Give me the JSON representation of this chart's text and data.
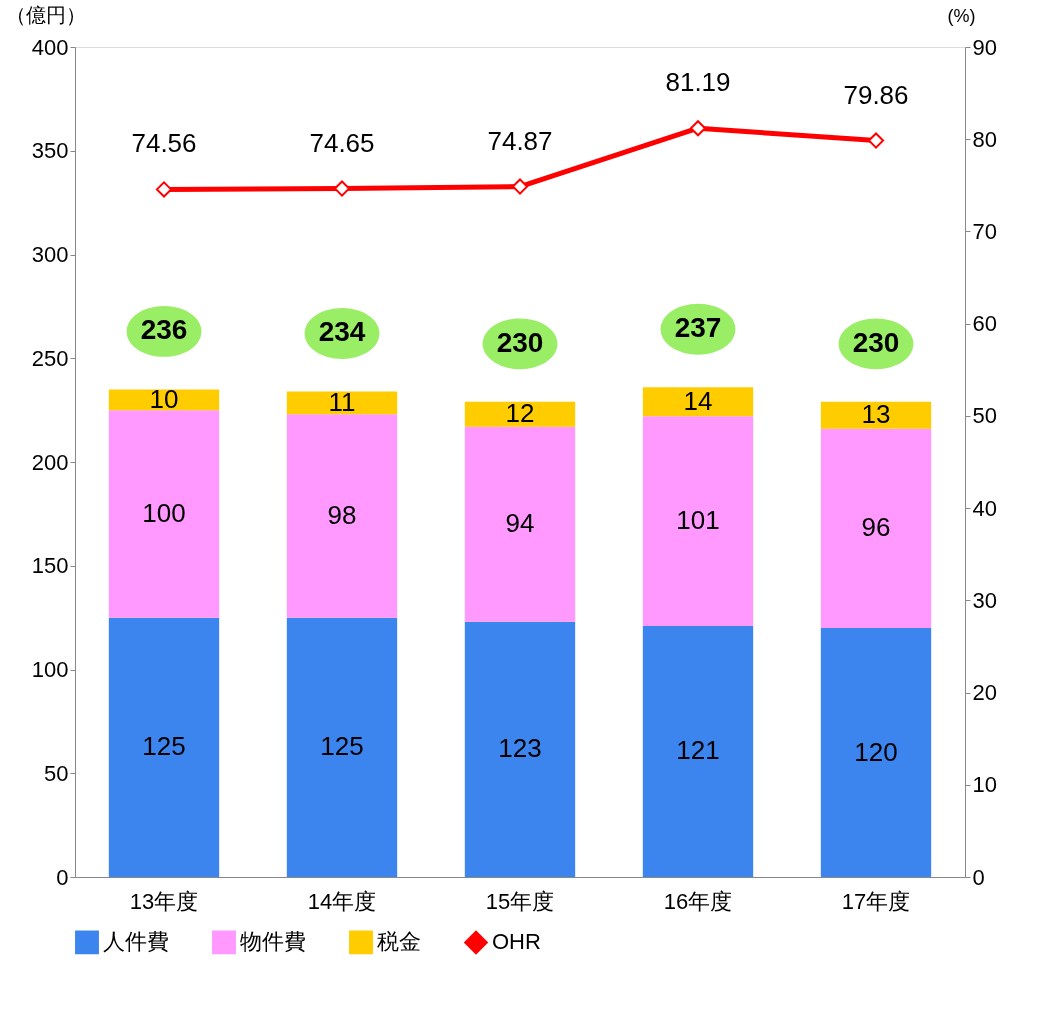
{
  "chart_data": {
    "type": "bar",
    "stacked": true,
    "categories": [
      "13年度",
      "14年度",
      "15年度",
      "16年度",
      "17年度"
    ],
    "series": [
      {
        "name": "人件費",
        "color": "#3d85ee",
        "values": [
          125,
          125,
          123,
          121,
          120
        ]
      },
      {
        "name": "物件費",
        "color": "#ff99ff",
        "values": [
          100,
          98,
          94,
          101,
          96
        ]
      },
      {
        "name": "税金",
        "color": "#ffcc00",
        "values": [
          10,
          11,
          12,
          14,
          13
        ]
      },
      {
        "name": "OHR",
        "type": "line",
        "axis": "y2",
        "color": "#ff0000",
        "marker": "diamond",
        "values": [
          74.56,
          74.65,
          74.87,
          81.19,
          79.86
        ]
      }
    ],
    "totals": [
      "236",
      "234",
      "230",
      "237",
      "230"
    ],
    "data_labels": true,
    "ylabel": "（億円）",
    "y2label": "(%)",
    "ylim": [
      0,
      400
    ],
    "yticks": [
      0,
      50,
      100,
      150,
      200,
      250,
      300,
      350,
      400
    ],
    "y2lim": [
      0,
      90
    ],
    "y2ticks": [
      0,
      10,
      20,
      30,
      40,
      50,
      60,
      70,
      80,
      90
    ],
    "grid": false,
    "legend": "bottom"
  }
}
